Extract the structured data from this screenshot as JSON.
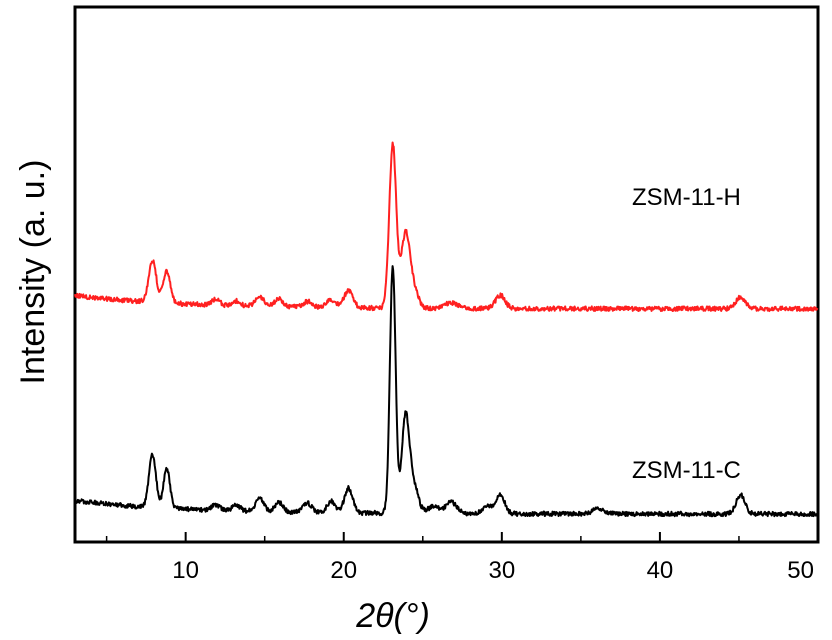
{
  "chart_data": {
    "type": "line",
    "title": "",
    "xlabel": "2θ(°)",
    "ylabel": "Intensity (a. u.)",
    "xlim": [
      3,
      50
    ],
    "x_ticks": [
      10,
      20,
      30,
      40,
      50
    ],
    "y_ticks": [],
    "grid": false,
    "series": [
      {
        "name": "ZSM-11-H",
        "color": "#ff2020",
        "baseline": 1.08,
        "noise": 0.012,
        "peaks": [
          {
            "x": 7.9,
            "height": 0.22,
            "width": 0.24
          },
          {
            "x": 8.8,
            "height": 0.17,
            "width": 0.22
          },
          {
            "x": 11.9,
            "height": 0.03,
            "width": 0.25
          },
          {
            "x": 13.2,
            "height": 0.025,
            "width": 0.25
          },
          {
            "x": 14.7,
            "height": 0.05,
            "width": 0.28
          },
          {
            "x": 15.9,
            "height": 0.04,
            "width": 0.28
          },
          {
            "x": 17.7,
            "height": 0.03,
            "width": 0.28
          },
          {
            "x": 19.2,
            "height": 0.04,
            "width": 0.28
          },
          {
            "x": 20.3,
            "height": 0.09,
            "width": 0.28
          },
          {
            "x": 23.1,
            "height": 0.86,
            "width": 0.22
          },
          {
            "x": 23.9,
            "height": 0.38,
            "width": 0.27
          },
          {
            "x": 24.4,
            "height": 0.1,
            "width": 0.3
          },
          {
            "x": 26.8,
            "height": 0.03,
            "width": 0.4
          },
          {
            "x": 29.9,
            "height": 0.07,
            "width": 0.3
          },
          {
            "x": 45.1,
            "height": 0.06,
            "width": 0.3
          }
        ]
      },
      {
        "name": "ZSM-11-C",
        "color": "#000000",
        "baseline": 0.0,
        "noise": 0.012,
        "peaks": [
          {
            "x": 7.9,
            "height": 0.28,
            "width": 0.22
          },
          {
            "x": 8.8,
            "height": 0.21,
            "width": 0.2
          },
          {
            "x": 11.9,
            "height": 0.03,
            "width": 0.25
          },
          {
            "x": 13.2,
            "height": 0.03,
            "width": 0.25
          },
          {
            "x": 14.7,
            "height": 0.07,
            "width": 0.26
          },
          {
            "x": 15.9,
            "height": 0.05,
            "width": 0.26
          },
          {
            "x": 17.7,
            "height": 0.05,
            "width": 0.26
          },
          {
            "x": 19.2,
            "height": 0.06,
            "width": 0.26
          },
          {
            "x": 20.3,
            "height": 0.13,
            "width": 0.26
          },
          {
            "x": 23.1,
            "height": 1.3,
            "width": 0.18
          },
          {
            "x": 23.9,
            "height": 0.49,
            "width": 0.24
          },
          {
            "x": 24.4,
            "height": 0.15,
            "width": 0.3
          },
          {
            "x": 25.7,
            "height": 0.04,
            "width": 0.35
          },
          {
            "x": 26.8,
            "height": 0.06,
            "width": 0.35
          },
          {
            "x": 29.1,
            "height": 0.04,
            "width": 0.3
          },
          {
            "x": 29.9,
            "height": 0.1,
            "width": 0.28
          },
          {
            "x": 36.1,
            "height": 0.03,
            "width": 0.35
          },
          {
            "x": 45.1,
            "height": 0.1,
            "width": 0.28
          }
        ]
      }
    ]
  }
}
